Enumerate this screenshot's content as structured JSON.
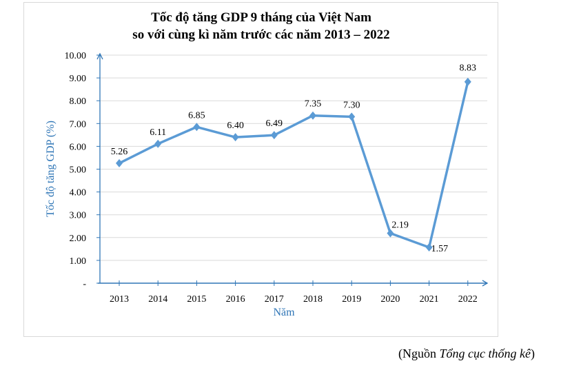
{
  "chart_data": {
    "type": "line",
    "title": [
      "Tốc độ tăng GDP 9 tháng của Việt Nam",
      "so với cùng kì năm trước các năm 2013 – 2022"
    ],
    "xlabel": "Năm",
    "ylabel": "Tốc độ tăng GDP (%)",
    "categories": [
      "2013",
      "2014",
      "2015",
      "2016",
      "2017",
      "2018",
      "2019",
      "2020",
      "2021",
      "2022"
    ],
    "values": [
      5.26,
      6.11,
      6.85,
      6.4,
      6.49,
      7.35,
      7.3,
      2.19,
      1.57,
      8.83
    ],
    "data_labels": [
      "5.26",
      "6.11",
      "6.85",
      "6.40",
      "6.49",
      "7.35",
      "7.30",
      "2.19",
      "1.57",
      "8.83"
    ],
    "y_ticks": [
      "-",
      "1.00",
      "2.00",
      "3.00",
      "4.00",
      "5.00",
      "6.00",
      "7.00",
      "8.00",
      "9.00",
      "10.00"
    ],
    "ylim": [
      0,
      10
    ],
    "grid": true,
    "line_color": "#5b9bd5",
    "axis_color": "#2e75b6"
  },
  "source": {
    "prefix": "(Nguồn ",
    "italic": "Tổng cục thống kê",
    "suffix": ")"
  }
}
